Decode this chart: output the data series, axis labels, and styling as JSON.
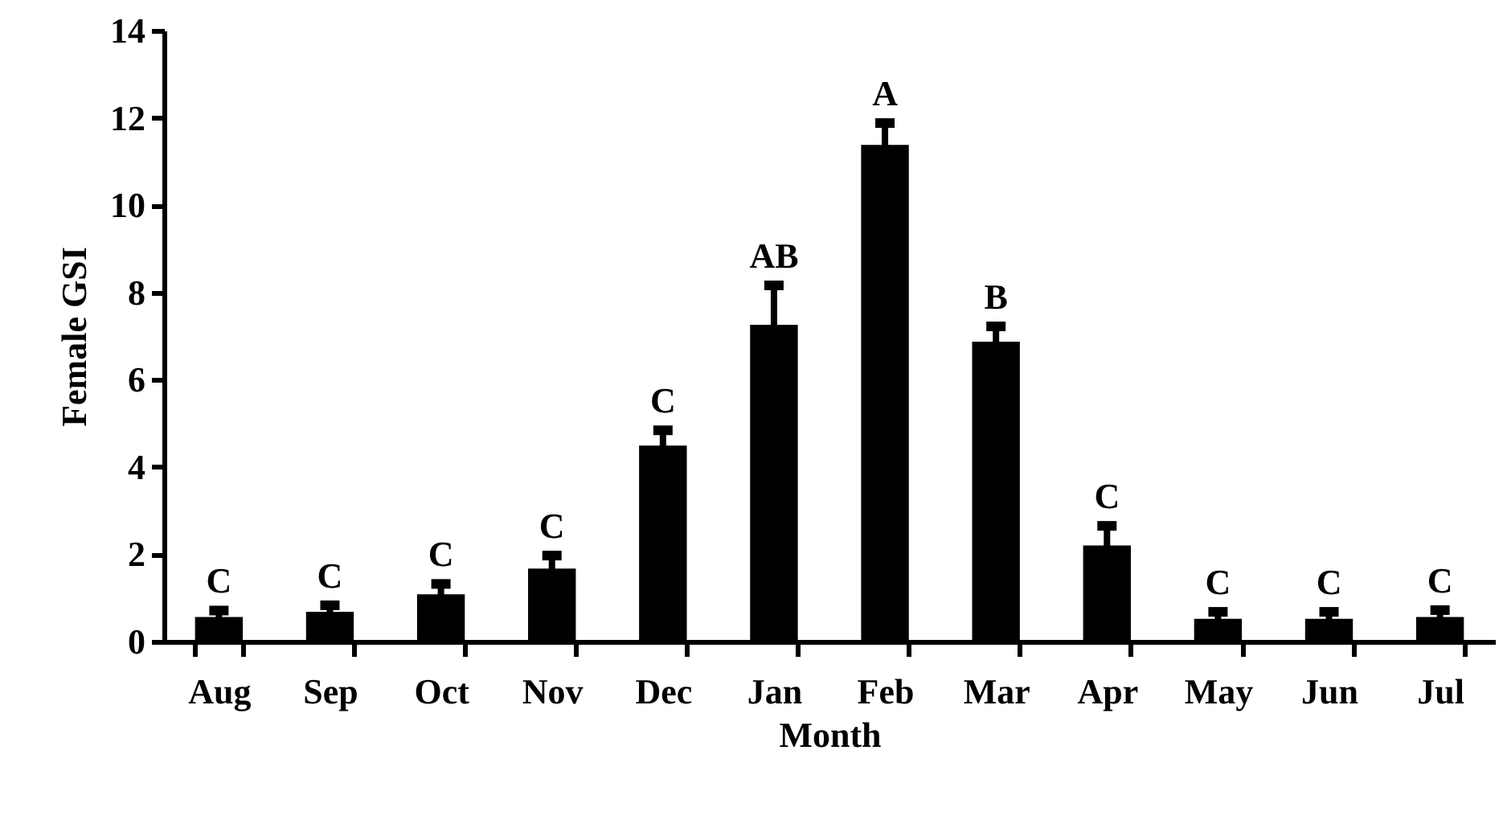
{
  "chart_data": {
    "type": "bar",
    "xlabel": "Month",
    "ylabel": "Female GSI",
    "categories": [
      "Aug",
      "Sep",
      "Oct",
      "Nov",
      "Dec",
      "Jan",
      "Feb",
      "Mar",
      "Apr",
      "May",
      "Jun",
      "Jul"
    ],
    "values": [
      0.56,
      0.68,
      1.08,
      1.67,
      4.49,
      7.26,
      11.38,
      6.87,
      2.2,
      0.52,
      0.52,
      0.56
    ],
    "errors": [
      0.15,
      0.15,
      0.24,
      0.3,
      0.35,
      0.9,
      0.5,
      0.35,
      0.45,
      0.16,
      0.16,
      0.16
    ],
    "color": "#000000",
    "ylim": [
      0,
      14
    ],
    "yticks": [
      0,
      2,
      4,
      6,
      8,
      10,
      12,
      14
    ],
    "grid": false,
    "annotations": [
      {
        "text": "C",
        "x": "Aug",
        "y": 0.71
      },
      {
        "text": "C",
        "x": "Sep",
        "y": 0.83
      },
      {
        "text": "C",
        "x": "Oct",
        "y": 1.32
      },
      {
        "text": "C",
        "x": "Nov",
        "y": 1.97
      },
      {
        "text": "C",
        "x": "Dec",
        "y": 4.84
      },
      {
        "text": "AB",
        "x": "Jan",
        "y": 8.16
      },
      {
        "text": "A",
        "x": "Feb",
        "y": 11.88
      },
      {
        "text": "B",
        "x": "Mar",
        "y": 7.22
      },
      {
        "text": "C",
        "x": "Apr",
        "y": 2.65
      },
      {
        "text": "C",
        "x": "May",
        "y": 0.68
      },
      {
        "text": "C",
        "x": "Jun",
        "y": 0.68
      },
      {
        "text": "C",
        "x": "Jul",
        "y": 0.72
      }
    ]
  }
}
